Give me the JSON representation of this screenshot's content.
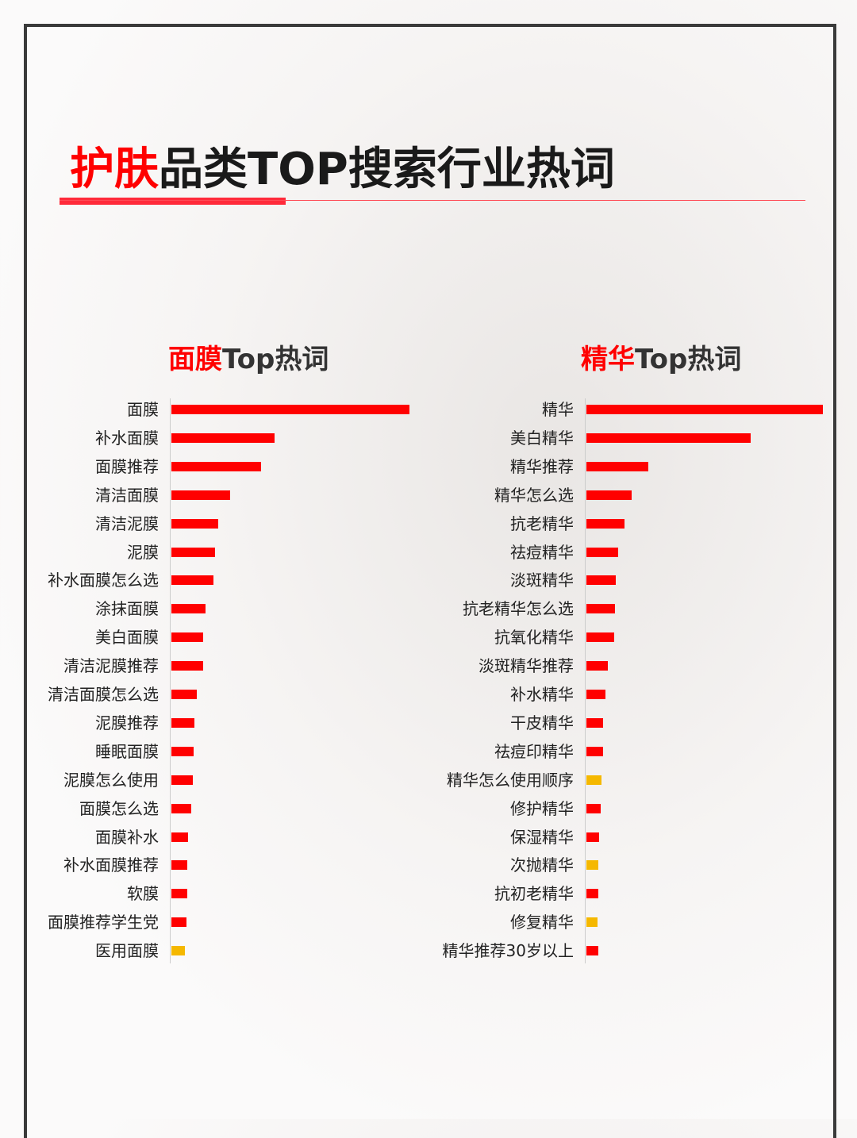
{
  "title": {
    "highlight": "护肤",
    "rest": "品类TOP搜索行业热词"
  },
  "chart_data": [
    {
      "type": "bar",
      "orientation": "horizontal",
      "title_highlight": "面膜",
      "title_rest": "Top热词",
      "categories": [
        "面膜",
        "补水面膜",
        "面膜推荐",
        "清洁面膜",
        "清洁泥膜",
        "泥膜",
        "补水面膜怎么选",
        "涂抹面膜",
        "美白面膜",
        "清洁泥膜推荐",
        "清洁面膜怎么选",
        "泥膜推荐",
        "睡眠面膜",
        "泥膜怎么使用",
        "面膜怎么选",
        "面膜补水",
        "补水面膜推荐",
        "软膜",
        "面膜推荐学生党",
        "医用面膜"
      ],
      "values": [
        300,
        130,
        113,
        74,
        59,
        55,
        53,
        43,
        40,
        40,
        32,
        29,
        28,
        27,
        25,
        21,
        20,
        20,
        19,
        17
      ],
      "colors": [
        "#ff0000",
        "#ff0000",
        "#ff0000",
        "#ff0000",
        "#ff0000",
        "#ff0000",
        "#ff0000",
        "#ff0000",
        "#ff0000",
        "#ff0000",
        "#ff0000",
        "#ff0000",
        "#ff0000",
        "#ff0000",
        "#ff0000",
        "#ff0000",
        "#ff0000",
        "#ff0000",
        "#ff0000",
        "#f5b800"
      ]
    },
    {
      "type": "bar",
      "orientation": "horizontal",
      "title_highlight": "精华",
      "title_rest": "Top热词",
      "categories": [
        "精华",
        "美白精华",
        "精华推荐",
        "精华怎么选",
        "抗老精华",
        "祛痘精华",
        "淡斑精华",
        "抗老精华怎么选",
        "抗氧化精华",
        "淡斑精华推荐",
        "补水精华",
        "干皮精华",
        "祛痘印精华",
        "精华怎么使用顺序",
        "修护精华",
        "保湿精华",
        "次抛精华",
        "抗初老精华",
        "修复精华",
        "精华推荐30岁以上"
      ],
      "values": [
        298,
        207,
        78,
        57,
        48,
        40,
        37,
        36,
        35,
        27,
        24,
        21,
        21,
        19,
        18,
        16,
        15,
        15,
        14,
        15
      ],
      "colors": [
        "#ff0000",
        "#ff0000",
        "#ff0000",
        "#ff0000",
        "#ff0000",
        "#ff0000",
        "#ff0000",
        "#ff0000",
        "#ff0000",
        "#ff0000",
        "#ff0000",
        "#ff0000",
        "#ff0000",
        "#f5b800",
        "#ff0000",
        "#ff0000",
        "#f5b800",
        "#ff0000",
        "#f5b800",
        "#ff0000"
      ]
    }
  ]
}
